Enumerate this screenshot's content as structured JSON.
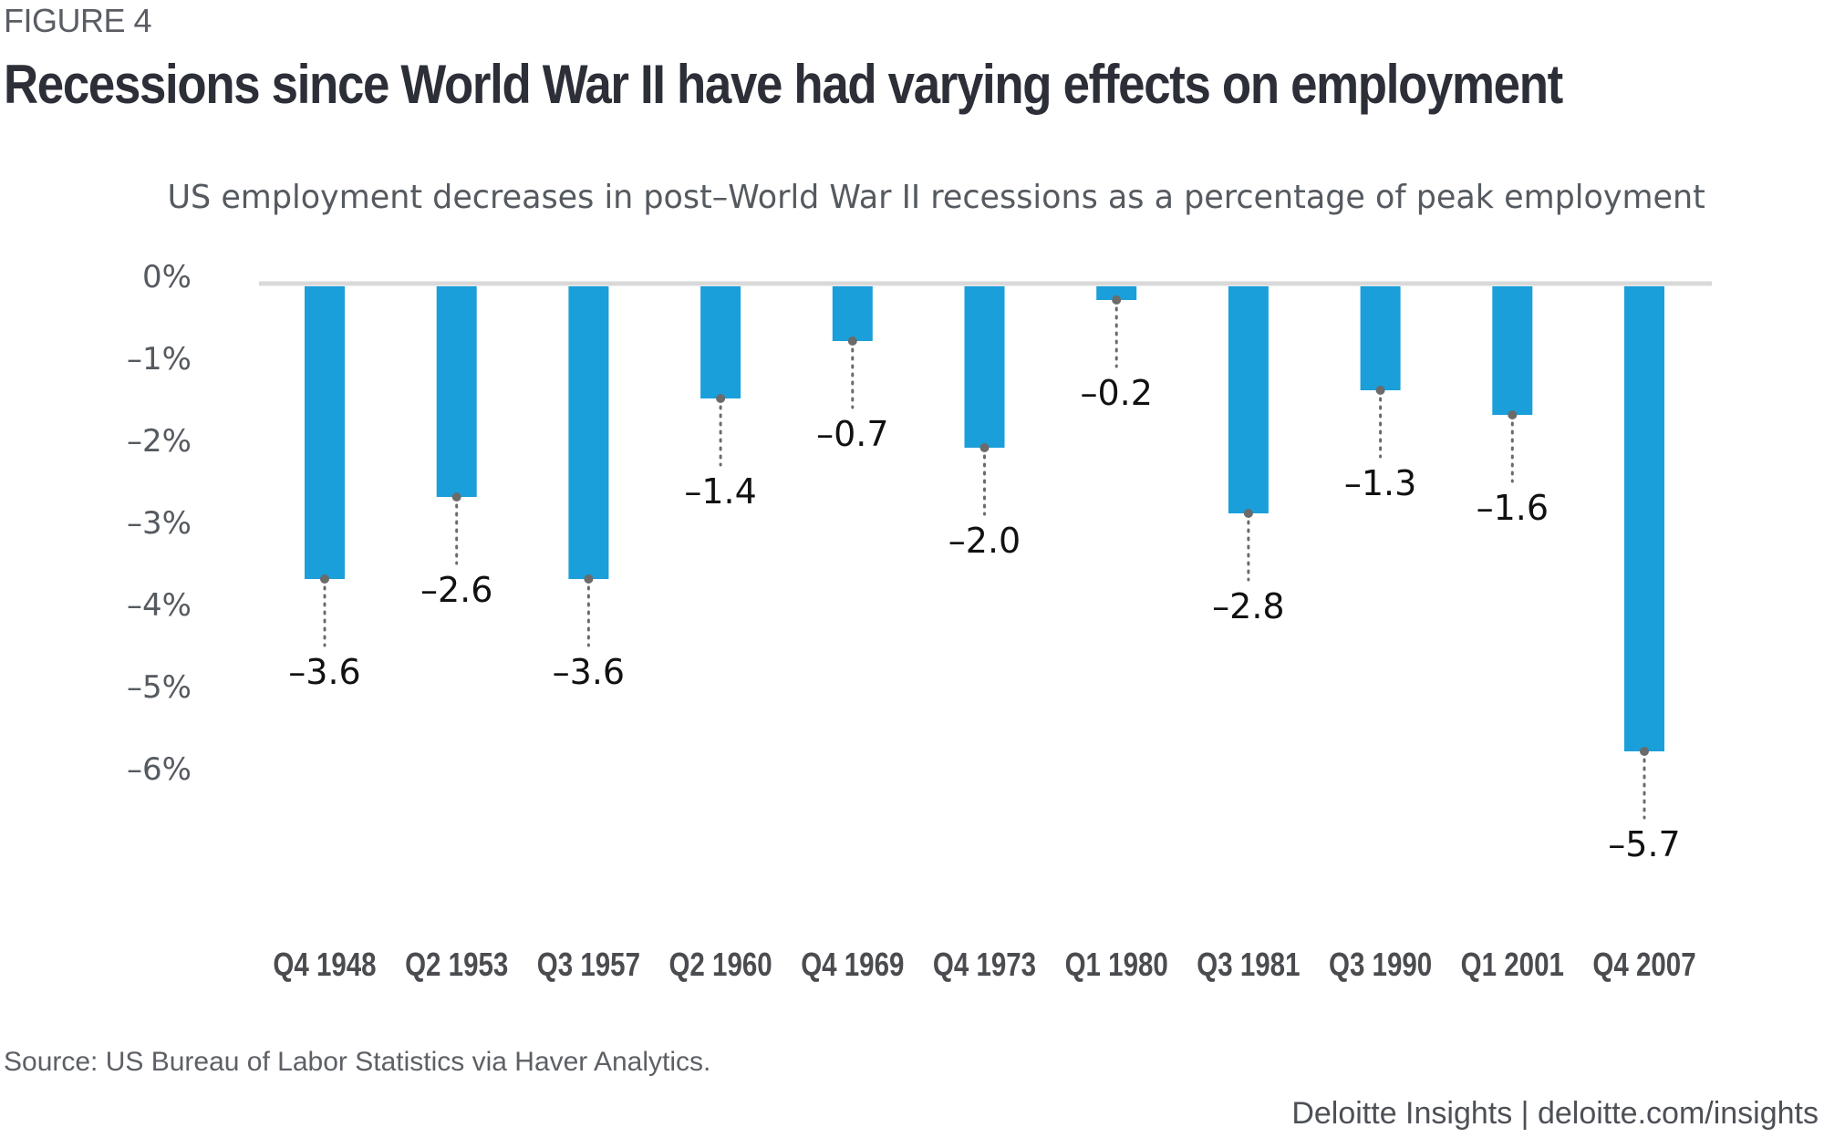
{
  "figure_label": "FIGURE 4",
  "title": "Recessions since World War II have had varying effects on employment",
  "subtitle": "US employment decreases in post–World War II recessions as a percentage of peak employment",
  "source": "Source: US Bureau of Labor Statistics via Haver Analytics.",
  "footer": "Deloitte Insights | deloitte.com/insights",
  "colors": {
    "bar": "#1a9fda",
    "marker": "#6b6b6b",
    "zero_line": "#d9d9d9",
    "text": "#2d2f38",
    "axis_text": "#555a60"
  },
  "chart_data": {
    "type": "bar",
    "title": "US employment decreases in post–World War II recessions as a percentage of peak employment",
    "xlabel": "",
    "ylabel": "",
    "categories": [
      "Q4 1948",
      "Q2 1953",
      "Q3 1957",
      "Q2 1960",
      "Q4 1969",
      "Q4 1973",
      "Q1 1980",
      "Q3 1981",
      "Q3 1990",
      "Q1 2001",
      "Q4 2007"
    ],
    "values": [
      -3.6,
      -2.6,
      -3.6,
      -1.4,
      -0.7,
      -2.0,
      -0.2,
      -2.8,
      -1.3,
      -1.6,
      -5.7
    ],
    "value_labels": [
      "–3.6",
      "–2.6",
      "–3.6",
      "–1.4",
      "–0.7",
      "–2.0",
      "–0.2",
      "–2.8",
      "–1.3",
      "–1.6",
      "–5.7"
    ],
    "ylim": [
      -6,
      0
    ],
    "yticks": [
      0,
      -1,
      -2,
      -3,
      -4,
      -5,
      -6
    ],
    "ytick_labels": [
      "0%",
      "–1%",
      "–2%",
      "–3%",
      "–4%",
      "–5%",
      "–6%"
    ],
    "grid": false,
    "legend": "none"
  }
}
